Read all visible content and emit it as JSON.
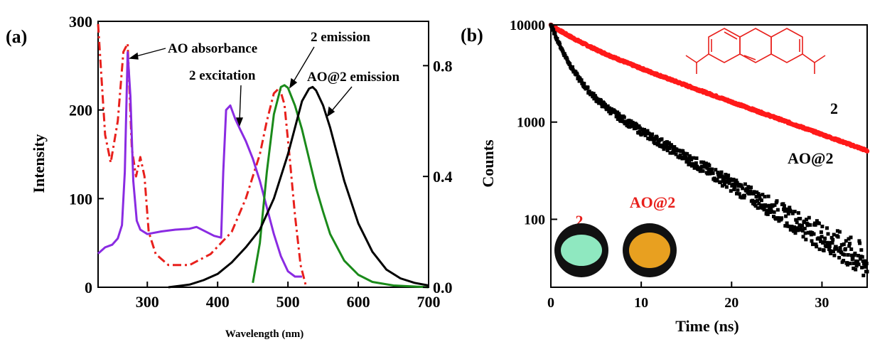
{
  "panels": {
    "a": {
      "label": "(a)"
    },
    "b": {
      "label": "(b)"
    }
  },
  "colors": {
    "absorbance": "#e8201c",
    "excitation": "#8a2be2",
    "emission2": "#1a8a1a",
    "aoemission": "#000000",
    "decay2": "#ff1a1a",
    "decayAO": "#000000",
    "powder2": "#8fe8c0",
    "powderAO": "#e8a020"
  },
  "chart_data": [
    {
      "type": "line",
      "xlabel": "Wavelength (nm)",
      "ylabel": "Intensity",
      "xlim": [
        230,
        700
      ],
      "ylim": [
        0,
        300
      ],
      "y2lim": [
        0,
        0.96
      ],
      "xticks": [
        "300",
        "400",
        "500",
        "600",
        "700"
      ],
      "yticks": [
        "0",
        "100",
        "200",
        "300"
      ],
      "y2ticks": [
        "0.0",
        "0.4",
        "0.8"
      ],
      "annotations": [
        "AO absorbance",
        "2 excitation",
        "2 emission",
        "AO@2 emission"
      ],
      "series": [
        {
          "name": "AO absorbance",
          "axis": "right",
          "style": "dash-dot",
          "x": [
            230,
            240,
            248,
            258,
            266,
            272,
            278,
            284,
            290,
            296,
            302,
            312,
            330,
            360,
            390,
            420,
            440,
            460,
            470,
            480,
            488,
            495,
            502,
            510,
            518,
            526
          ],
          "y": [
            0.95,
            0.55,
            0.45,
            0.6,
            0.85,
            0.88,
            0.5,
            0.4,
            0.47,
            0.4,
            0.2,
            0.12,
            0.08,
            0.08,
            0.12,
            0.2,
            0.32,
            0.48,
            0.6,
            0.7,
            0.72,
            0.66,
            0.48,
            0.26,
            0.08,
            0.0
          ]
        },
        {
          "name": "2 excitation",
          "axis": "left",
          "x": [
            230,
            240,
            250,
            258,
            264,
            268,
            272,
            276,
            280,
            285,
            290,
            300,
            320,
            340,
            360,
            370,
            380,
            395,
            405,
            408,
            412,
            418,
            425,
            432,
            440,
            450,
            460,
            470,
            480,
            490,
            500,
            510,
            520
          ],
          "y": [
            38,
            45,
            48,
            55,
            70,
            130,
            265,
            215,
            120,
            75,
            65,
            60,
            63,
            65,
            66,
            68,
            64,
            58,
            56,
            130,
            200,
            205,
            190,
            178,
            165,
            145,
            120,
            90,
            60,
            35,
            18,
            12,
            12
          ]
        },
        {
          "name": "2 emission",
          "axis": "left",
          "x": [
            450,
            460,
            470,
            480,
            490,
            495,
            500,
            510,
            520,
            530,
            540,
            550,
            560,
            580,
            600,
            620,
            650,
            700
          ],
          "y": [
            5,
            50,
            130,
            195,
            226,
            228,
            225,
            205,
            178,
            145,
            112,
            85,
            60,
            30,
            14,
            6,
            2,
            0
          ]
        },
        {
          "name": "AO@2 emission",
          "axis": "left",
          "x": [
            330,
            360,
            380,
            400,
            420,
            440,
            460,
            480,
            500,
            510,
            520,
            530,
            535,
            540,
            550,
            560,
            570,
            580,
            600,
            620,
            640,
            660,
            680,
            700
          ],
          "y": [
            0,
            3,
            8,
            15,
            28,
            45,
            65,
            100,
            150,
            180,
            210,
            224,
            226,
            222,
            205,
            180,
            150,
            120,
            72,
            40,
            20,
            10,
            5,
            2
          ]
        }
      ]
    },
    {
      "type": "scatter",
      "xlabel": "Time (ns)",
      "ylabel": "Counts",
      "xlim": [
        0,
        35
      ],
      "ylim": [
        20,
        10000
      ],
      "yscale": "log",
      "xticks": [
        "0",
        "10",
        "20",
        "30"
      ],
      "yticks": [
        "100",
        "1000",
        "10000"
      ],
      "series": [
        {
          "name": "2",
          "tau_short": 3.0,
          "tau_long": 13.0,
          "amp_short": 0.25,
          "amp_long": 0.75,
          "start": 10000
        },
        {
          "name": "AO@2",
          "tau_short": 1.5,
          "tau_long": 8.0,
          "amp_short": 0.72,
          "amp_long": 0.28,
          "start": 10000
        }
      ],
      "labels": {
        "series2": "2",
        "seriesAO": "AO@2"
      },
      "inset": {
        "photo_label_1": "2",
        "photo_label_2": "AO@2"
      }
    }
  ]
}
